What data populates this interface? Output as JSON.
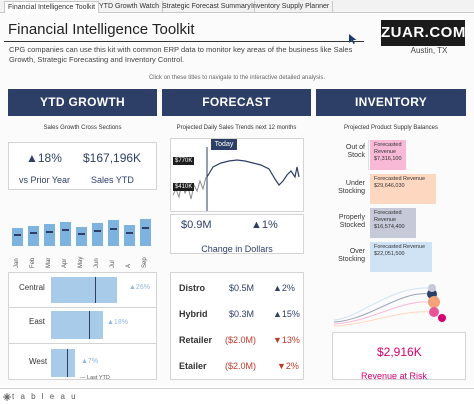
{
  "tabs": [
    {
      "label": "Financial Intelligence Toolkit",
      "active": true
    },
    {
      "label": "YTD Growth Watch",
      "active": false
    },
    {
      "label": "Strategic Forecast Summary",
      "active": false
    },
    {
      "label": "Inventory Supply Planner",
      "active": false
    }
  ],
  "header": {
    "title": "Financial Intelligence Toolkit",
    "description": "CPG companies can use this kit with common ERP data to monitor key areas of the business like Sales Growth, Strategic Forecasting and Inventory Control.",
    "hint": "Click on these titles to navigate to the interactive detailed analysis.",
    "logo": "ZUAR.COM",
    "location": "Austin, TX"
  },
  "sections": {
    "ytd": {
      "label": "YTD GROWTH",
      "subtitle": "Sales Growth Cross Sections"
    },
    "forecast": {
      "label": "FORECAST",
      "subtitle": "Projected Daily Sales Trends next 12 months"
    },
    "inventory": {
      "label": "INVENTORY",
      "subtitle": "Projected Product Supply Balances"
    }
  },
  "ytd": {
    "growth_value": "▲18%",
    "growth_label": "vs Prior Year",
    "sales_value": "$167,196K",
    "sales_label": "Sales YTD",
    "months": [
      "Jan",
      "Feb",
      "Mar",
      "Apr",
      "May",
      "Jun",
      "Jul",
      "A",
      "Sep"
    ],
    "regions": [
      {
        "name": "Central",
        "pct": "▲26%",
        "value": 0.66
      },
      {
        "name": "East",
        "pct": "▲18%",
        "value": 0.52
      },
      {
        "name": "West",
        "pct": "▲7%",
        "value": 0.24
      }
    ],
    "legend": "— Last YTD"
  },
  "forecast": {
    "today_label": "Today",
    "y_high": "$770K",
    "y_low": "$410K",
    "change_value": "$0.9M",
    "change_pct": "▲1%",
    "change_label": "Change in Dollars",
    "segments": [
      {
        "name": "Distro",
        "value": "$0.5M",
        "pct": "▲2%",
        "positive": true
      },
      {
        "name": "Hybrid",
        "value": "$0.3M",
        "pct": "▲15%",
        "positive": true
      },
      {
        "name": "Retailer",
        "value": "($2.0M)",
        "pct": "▼13%",
        "positive": false
      },
      {
        "name": "Etailer",
        "value": "($2.0M)",
        "pct": "▼2%",
        "positive": false
      }
    ]
  },
  "inventory": {
    "rows": [
      {
        "label": "Out of Stock",
        "box_title": "Forecasted Revenue",
        "box_value": "$7,316,100",
        "color": "#f7b9d6"
      },
      {
        "label": "Under Stocking",
        "box_title": "Forecasted Revenue",
        "box_value": "$29,646,030",
        "color": "#fdd7c0"
      },
      {
        "label": "Properly Stocked",
        "box_title": "Forecasted Revenue",
        "box_value": "$16,574,400",
        "color": "#c5c9d8"
      },
      {
        "label": "Over Stocking",
        "box_title": "Forecasted Revenue",
        "box_value": "$22,051,500",
        "color": "#cfe3f4"
      }
    ],
    "risk_value": "$2,916K",
    "risk_label": "Revenue at Risk"
  },
  "footer": {
    "brand": "t a b l e a u"
  },
  "colors": {
    "navy": "#2d3f66",
    "bar_blue": "#7fb3df",
    "risk_pink": "#d6006e",
    "neg_red": "#c0392b"
  }
}
